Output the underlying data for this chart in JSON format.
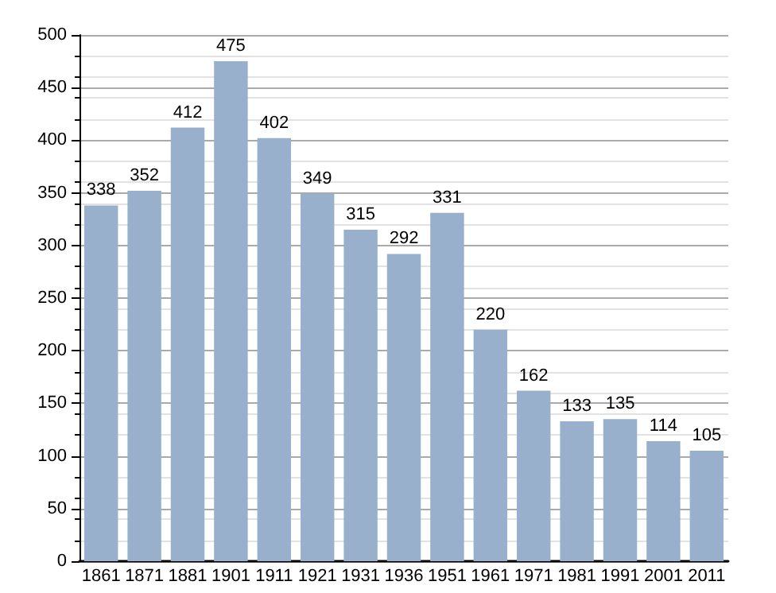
{
  "chart_data": {
    "type": "bar",
    "categories": [
      "1861",
      "1871",
      "1881",
      "1901",
      "1911",
      "1921",
      "1931",
      "1936",
      "1951",
      "1961",
      "1971",
      "1981",
      "1991",
      "2001",
      "2011"
    ],
    "values": [
      338,
      352,
      412,
      475,
      402,
      349,
      315,
      292,
      331,
      220,
      162,
      133,
      135,
      114,
      105
    ],
    "color": "#98b0cb",
    "ylim": [
      0,
      500
    ],
    "yticks": [
      0,
      50,
      100,
      150,
      200,
      250,
      300,
      350,
      400,
      450,
      500
    ],
    "grid": "y",
    "data_labels": true
  }
}
